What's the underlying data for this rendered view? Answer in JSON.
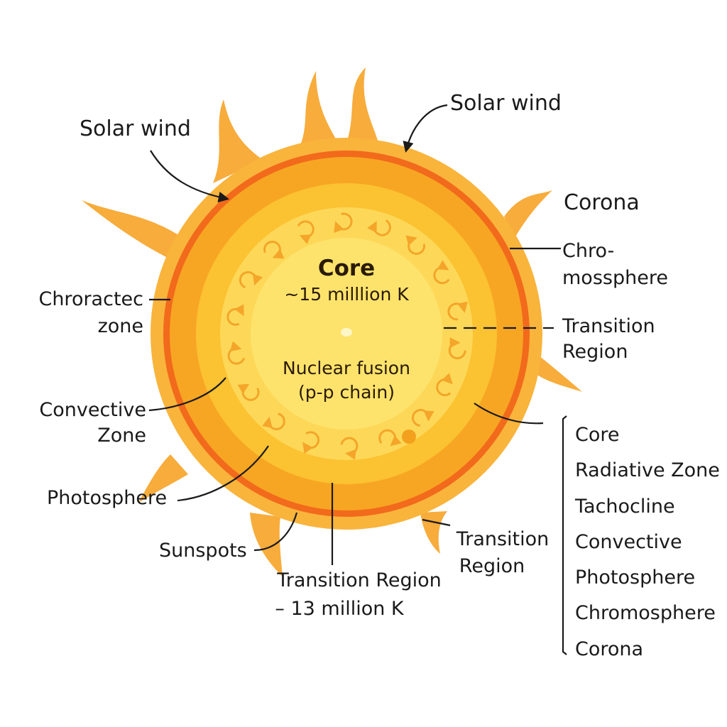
{
  "colors": {
    "flare": "#f7ac3b",
    "corona_ring": "#f9b43c",
    "chromosphere_ring": "#f26a1b",
    "photosphere": "#f7a623",
    "convective": "#fbc232",
    "radiative": "#fdd858",
    "core": "#fde36c",
    "arrows": "#f4a52a",
    "leader": "#1a1a1a"
  },
  "core": {
    "title": "Core",
    "temperature": "~15 milllion K",
    "fusion_line1": "Nuclear fusion",
    "fusion_line2": "(p-p chain)"
  },
  "labels": {
    "solar_wind_left": "Solar wind",
    "solar_wind_right": "Solar wind",
    "corona": "Corona",
    "chromosphere": [
      "Chro-",
      "mossphere"
    ],
    "chroractec_zone": [
      "Chroractec",
      "zone"
    ],
    "transition_region_right": [
      "Transition",
      "Region"
    ],
    "convective_zone": [
      "Convective",
      "Zone"
    ],
    "photosphere": "Photosphere",
    "sunspots": "Sunspots",
    "transition_region_bottom": [
      "Transition Region",
      "– 13 million K"
    ],
    "transition_region_lower_right": [
      "Transition",
      "Region"
    ]
  },
  "layer_list": [
    "Core",
    "Radiative Zone",
    "Tachocline",
    "Convective",
    "Photosphere",
    "Chromosphere",
    "Corona"
  ]
}
